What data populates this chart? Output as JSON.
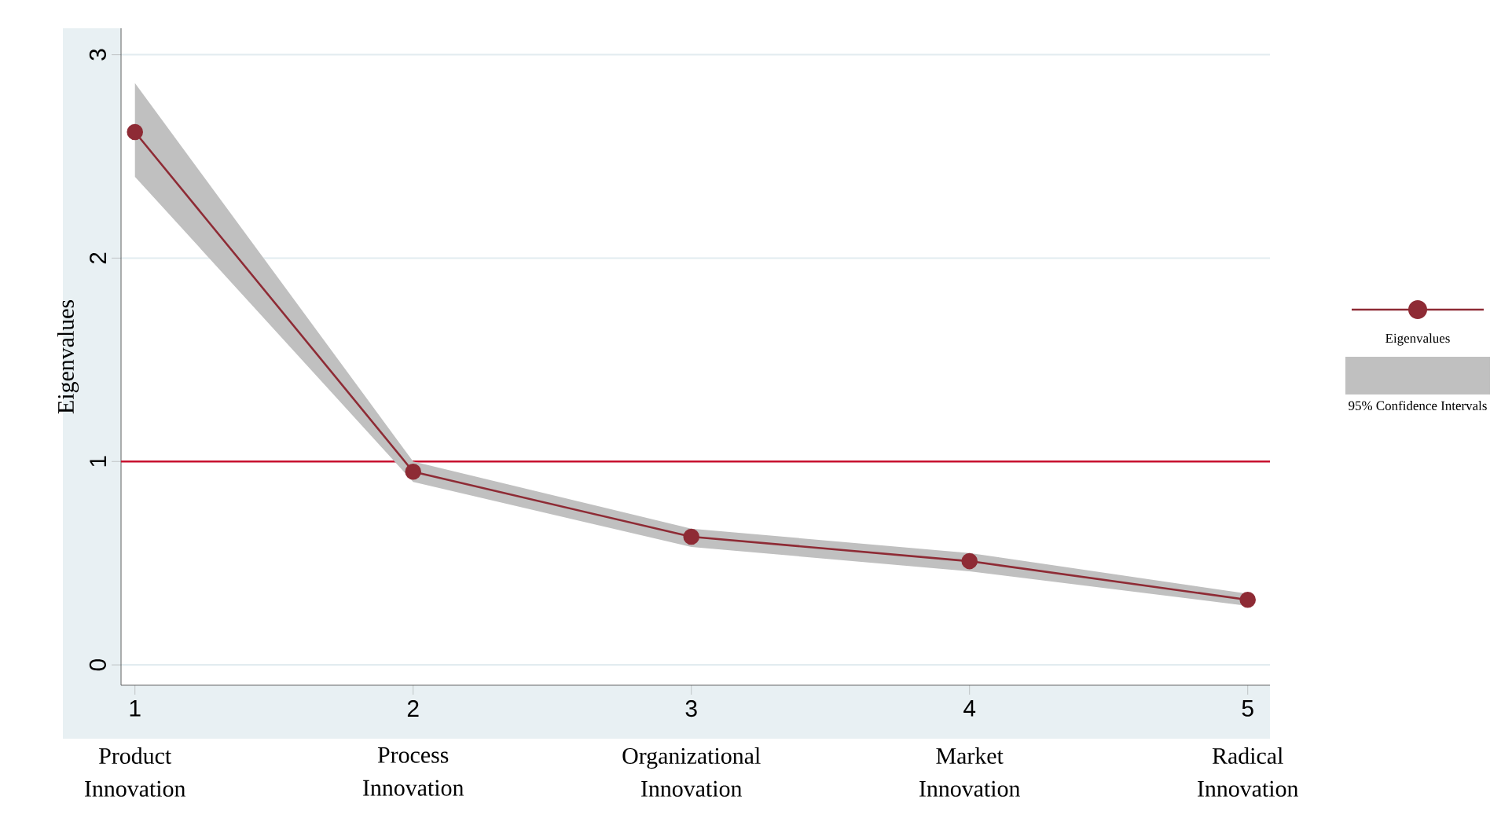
{
  "chart_data": {
    "type": "line",
    "ylabel": "Eigenvalues",
    "x": [
      1,
      2,
      3,
      4,
      5
    ],
    "series": [
      {
        "name": "Eigenvalues",
        "color": "#8e2b35",
        "values": [
          2.62,
          0.95,
          0.63,
          0.51,
          0.32
        ],
        "lower": [
          2.4,
          0.9,
          0.58,
          0.46,
          0.29
        ],
        "upper": [
          2.86,
          1.0,
          0.67,
          0.55,
          0.35
        ]
      }
    ],
    "xlim": [
      0.95,
      5.08
    ],
    "xticks": [
      1,
      2,
      3,
      4,
      5
    ],
    "ylim": [
      -0.1,
      3.13
    ],
    "yticks": [
      0,
      1,
      2,
      3
    ],
    "ref_lines": [
      {
        "axis": "y",
        "value": 1,
        "color": "#c8102e"
      }
    ],
    "annotations": [
      "Product Innovation",
      "Process Innovation",
      "Organizational Innovation",
      "Market Innovation",
      "Radical Innovation",
      "95% Confidence Intervals"
    ],
    "grid": "y",
    "legend": "right",
    "marker": "circle",
    "line_style": "solid"
  }
}
